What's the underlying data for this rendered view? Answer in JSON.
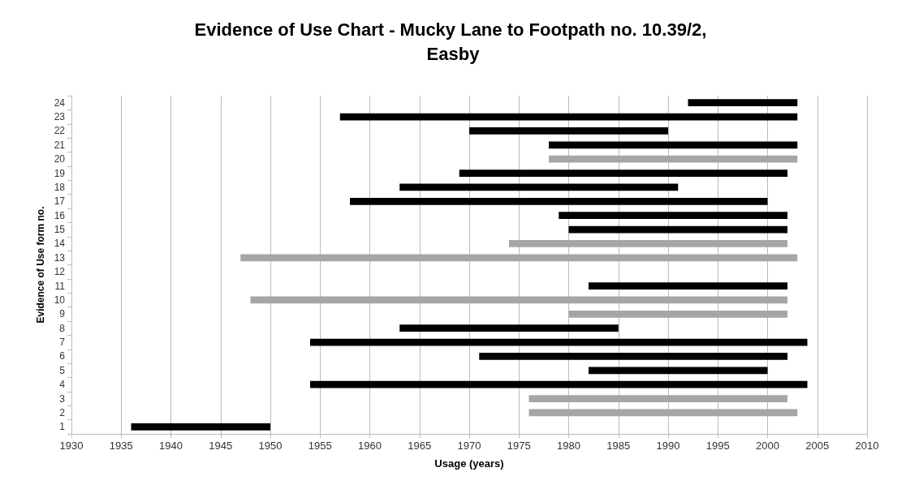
{
  "chart_data": {
    "type": "bar",
    "orientation": "horizontal",
    "title": "Evidence of Use Chart - Mucky Lane to Footpath no. 10.39/2, Easby",
    "xlabel": "Usage (years)",
    "ylabel": "Evidence of Use form no.",
    "categories": [
      "24",
      "23",
      "22",
      "21",
      "20",
      "19",
      "18",
      "17",
      "16",
      "15",
      "14",
      "13",
      "12",
      "11",
      "10",
      "9",
      "8",
      "7",
      "6",
      "5",
      "4",
      "3",
      "2",
      "1"
    ],
    "base": [
      1992,
      1957,
      1970,
      1978,
      1978,
      1969,
      1963,
      1958,
      1979,
      1980,
      1974,
      1947,
      null,
      1982,
      1948,
      1980,
      1963,
      1954,
      1971,
      1982,
      1954,
      1976,
      1976,
      1936
    ],
    "values": [
      11,
      46,
      20,
      25,
      25,
      33,
      28,
      42,
      23,
      22,
      28,
      56,
      null,
      20,
      54,
      22,
      22,
      50,
      31,
      18,
      50,
      26,
      27,
      14
    ],
    "colors": [
      "#000000",
      "#000000",
      "#000000",
      "#000000",
      "#a6a6a6",
      "#000000",
      "#000000",
      "#000000",
      "#000000",
      "#000000",
      "#a6a6a6",
      "#a6a6a6",
      null,
      "#000000",
      "#a6a6a6",
      "#a6a6a6",
      "#000000",
      "#000000",
      "#000000",
      "#000000",
      "#000000",
      "#a6a6a6",
      "#a6a6a6",
      "#000000"
    ],
    "xlim": [
      1930,
      2010
    ],
    "xticks": [
      1930,
      1935,
      1940,
      1945,
      1950,
      1955,
      1960,
      1965,
      1970,
      1975,
      1980,
      1985,
      1990,
      1995,
      2000,
      2005,
      2010
    ],
    "grid": "x"
  }
}
